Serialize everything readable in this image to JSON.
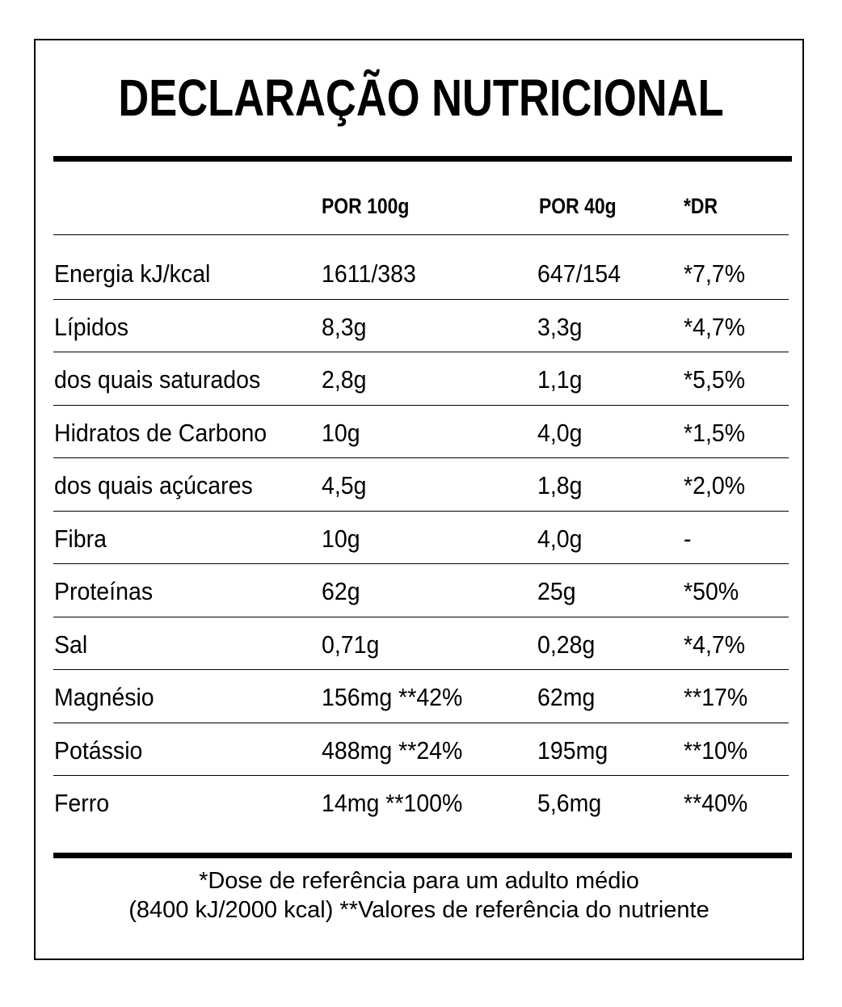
{
  "title": "DECLARAÇÃO NUTRICIONAL",
  "columns": [
    "",
    "POR 100g",
    "POR 40g",
    "*DR"
  ],
  "rows": [
    {
      "name": "Energia kJ/kcal",
      "per100": "1611/383",
      "per40": "647/154",
      "dr": "*7,7%"
    },
    {
      "name": "Lípidos",
      "per100": "8,3g",
      "per40": "3,3g",
      "dr": "*4,7%"
    },
    {
      "name": "dos quais saturados",
      "per100": "2,8g",
      "per40": "1,1g",
      "dr": "*5,5%"
    },
    {
      "name": "Hidratos de Carbono",
      "per100": "10g",
      "per40": "4,0g",
      "dr": "*1,5%"
    },
    {
      "name": "dos quais açúcares",
      "per100": "4,5g",
      "per40": "1,8g",
      "dr": "*2,0%"
    },
    {
      "name": "Fibra",
      "per100": "10g",
      "per40": "4,0g",
      "dr": "-"
    },
    {
      "name": "Proteínas",
      "per100": "62g",
      "per40": "25g",
      "dr": "*50%"
    },
    {
      "name": "Sal",
      "per100": "0,71g",
      "per40": "0,28g",
      "dr": "*4,7%"
    },
    {
      "name": "Magnésio",
      "per100": "156mg **42%",
      "per40": "62mg",
      "dr": "**17%"
    },
    {
      "name": "Potássio",
      "per100": "488mg **24%",
      "per40": "195mg",
      "dr": "**10%"
    },
    {
      "name": "Ferro",
      "per100": "14mg **100%",
      "per40": "5,6mg",
      "dr": "**40%"
    }
  ],
  "footer": {
    "line1": "*Dose de referência para um adulto médio",
    "line2": "(8400 kJ/2000 kcal) **Valores de referência do nutriente"
  }
}
